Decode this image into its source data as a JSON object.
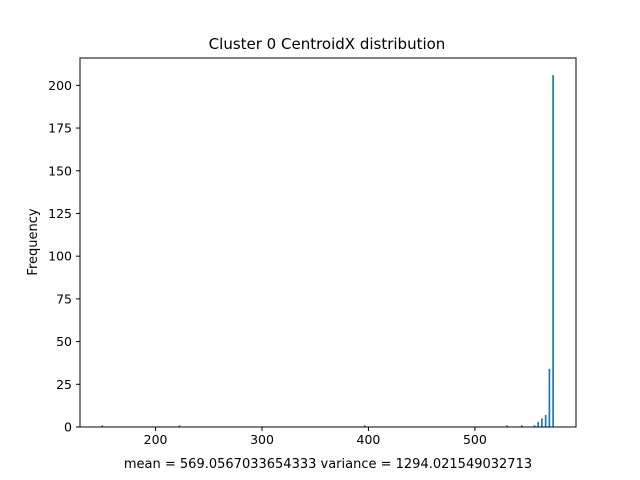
{
  "chart_data": {
    "type": "bar",
    "title": "Cluster 0 CentroidX distribution",
    "xlabel": "mean = 569.0567033654333    variance = 1294.021549032713",
    "ylabel": "Frequency",
    "xlim": [
      129,
      595
    ],
    "ylim": [
      0,
      216
    ],
    "x_ticks": [
      200,
      300,
      400,
      500
    ],
    "y_ticks": [
      0,
      25,
      50,
      75,
      100,
      125,
      150,
      175,
      200
    ],
    "grid": false,
    "bar_width": 1.6,
    "bar_color": "#1f77b4",
    "bars": [
      {
        "x": 150,
        "count": 1
      },
      {
        "x": 222.5,
        "count": 1
      },
      {
        "x": 396.5,
        "count": 1
      },
      {
        "x": 530,
        "count": 1
      },
      {
        "x": 544,
        "count": 1
      },
      {
        "x": 556,
        "count": 1
      },
      {
        "x": 559.5,
        "count": 3
      },
      {
        "x": 563,
        "count": 5
      },
      {
        "x": 566.5,
        "count": 7
      },
      {
        "x": 570,
        "count": 34
      },
      {
        "x": 573.5,
        "count": 206
      }
    ]
  }
}
